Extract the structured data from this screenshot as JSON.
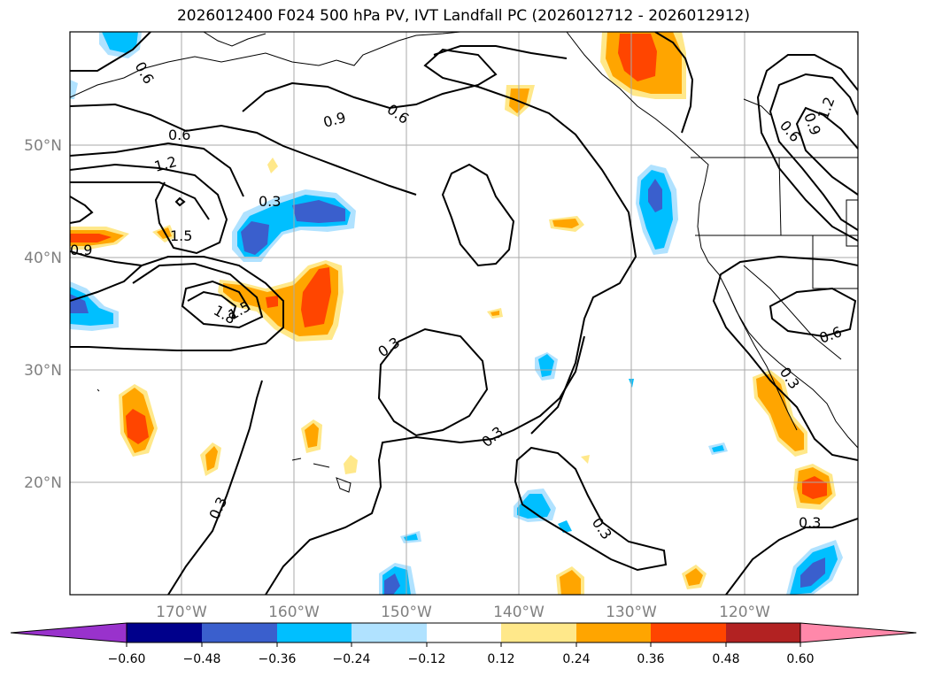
{
  "title": "2026012400 F024 500 hPa PV, IVT Landfall PC (2026012712 - 2026012912)",
  "lat_ticks": [
    "50°N",
    "40°N",
    "30°N",
    "20°N"
  ],
  "lon_ticks": [
    "170°W",
    "160°W",
    "150°W",
    "140°W",
    "130°W",
    "120°W"
  ],
  "contour_labels": [
    "0.6",
    "0.9",
    "0.6",
    "0.6",
    "1.2",
    "1.5",
    "0.9",
    "0.3",
    "1.8",
    "1.5",
    "0.3",
    "0.3",
    "0.3",
    "0.3",
    "0.3",
    "0.3",
    "0.6",
    "0.9",
    "1.2",
    "0.6",
    "0.3"
  ],
  "colorbar": {
    "ticks": [
      "−0.60",
      "−0.48",
      "−0.36",
      "−0.24",
      "−0.12",
      "0.12",
      "0.24",
      "0.36",
      "0.48",
      "0.60"
    ],
    "colors": [
      "#9932cc",
      "#00008b",
      "#3a5fcd",
      "#00bfff",
      "#b0e2ff",
      "#ffffff",
      "#ffe88a",
      "#ffa500",
      "#ff4500",
      "#b22222",
      "#ff88aa"
    ]
  },
  "colors": {
    "grid": "#aaaaaa",
    "contour": "#000000",
    "coast": "#000000",
    "tick_text": "#808080"
  }
}
